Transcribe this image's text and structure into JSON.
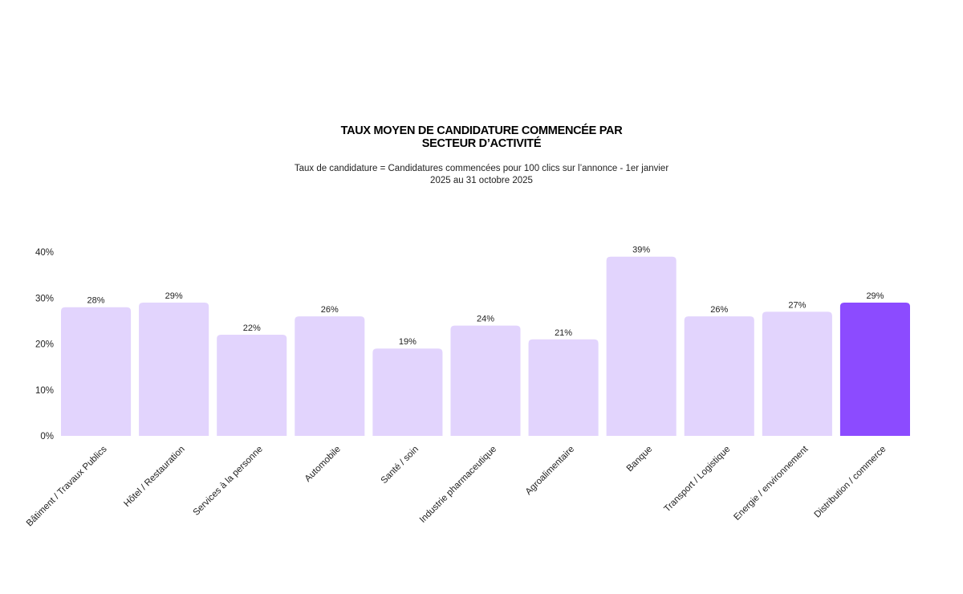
{
  "colors": {
    "bar": "#e2d4fd",
    "highlight": "#8c4bff"
  },
  "chart_data": {
    "type": "bar",
    "title": "TAUX MOYEN DE CANDIDATURE COMMENCÉE PAR SECTEUR D’ACTIVITÉ",
    "subtitle": "Taux de candidature = Candidatures commencées pour 100 clics sur l’annonce - 1er janvier 2025 au 31 octobre 2025",
    "xlabel": "",
    "ylabel": "",
    "ylim": [
      0,
      40
    ],
    "yticks": [
      "0%",
      "10%",
      "20%",
      "30%",
      "40%"
    ],
    "grid": false,
    "legend": "none",
    "categories": [
      "Bâtiment / Travaux Publics",
      "Hôtel / Restauration",
      "Services à la personne",
      "Automobile",
      "Santé / soin",
      "Industrie pharmaceutique",
      "Agroalimentaire",
      "Banque",
      "Transport / Logistique",
      "Energie / environnement",
      "Distribution / commerce"
    ],
    "values": [
      28,
      29,
      22,
      26,
      19,
      24,
      21,
      39,
      26,
      27,
      29
    ],
    "data_labels": [
      "28%",
      "29%",
      "22%",
      "26%",
      "19%",
      "24%",
      "21%",
      "39%",
      "26%",
      "27%",
      "29%"
    ],
    "highlighted_category": "Distribution / commerce"
  }
}
